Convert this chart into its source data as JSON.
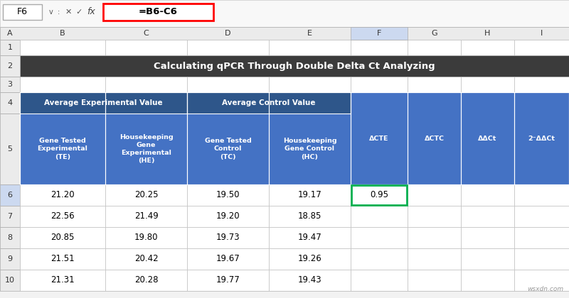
{
  "title": "Calculating qPCR Through Double Delta Ct Analyzing",
  "title_bg": "#3b3b3b",
  "title_color": "#ffffff",
  "formula_bar_text": "=B6-C6",
  "cell_ref": "F6",
  "col_letters": [
    "A",
    "B",
    "C",
    "D",
    "E",
    "F",
    "G",
    "H",
    "I"
  ],
  "header_bg": "#2e568a",
  "subheader_bg": "#4472c4",
  "header_color": "#ffffff",
  "data_color": "#000000",
  "grid_color": "#c0c0c0",
  "selected_col_bg": "#ccd9f0",
  "selected_cell_border": "#00b050",
  "group_header1": "Average Experimental Value",
  "group_header2": "Average Control Value",
  "col_headers_b": "Gene Tested\nExperimental\n(TE)",
  "col_headers_c": "Housekeeping\nGene\nExperimental\n(HE)",
  "col_headers_d": "Gene Tested\nControl\n(TC)",
  "col_headers_e": "Housekeeping\nGene Control\n(HC)",
  "col_headers_f": "ΔCTE",
  "col_headers_g": "ΔCTC",
  "col_headers_h": "ΔΔCt",
  "col_headers_i": "2⁻ΔΔCt",
  "data_rows": [
    [
      "21.20",
      "20.25",
      "19.50",
      "19.17",
      "0.95",
      "",
      "",
      ""
    ],
    [
      "22.56",
      "21.49",
      "19.20",
      "18.85",
      "",
      "",
      "",
      ""
    ],
    [
      "20.85",
      "19.80",
      "19.73",
      "19.47",
      "",
      "",
      "",
      ""
    ],
    [
      "21.51",
      "20.42",
      "19.67",
      "19.26",
      "",
      "",
      "",
      ""
    ],
    [
      "21.31",
      "20.28",
      "19.77",
      "19.43",
      "",
      "",
      "",
      ""
    ]
  ],
  "watermark": "wsxdn.com",
  "excel_bg": "#f2f2f2",
  "ribbon_bg": "#f2f2f2",
  "formula_red_border": "#ff0000"
}
